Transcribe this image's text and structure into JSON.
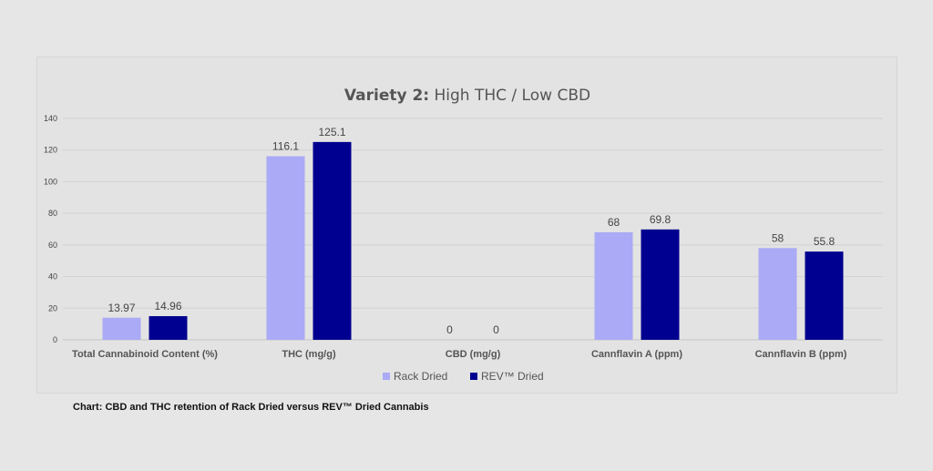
{
  "caption": "Chart: CBD and THC retention of Rack Dried versus REV™ Dried Cannabis",
  "chart_data": {
    "type": "bar",
    "title_bold": "Variety 2:",
    "title_rest": " High THC / Low CBD",
    "categories": [
      "Total Cannabinoid Content (%)",
      "THC (mg/g)",
      "CBD (mg/g)",
      "Cannflavin A (ppm)",
      "Cannflavin B (ppm)"
    ],
    "series": [
      {
        "name": "Rack Dried",
        "color": "#aaaaf6",
        "values": [
          13.97,
          116.1,
          0,
          68,
          58
        ],
        "labels": [
          "13.97",
          "116.1",
          "0",
          "68",
          "58"
        ]
      },
      {
        "name": "REV™ Dried",
        "color": "#000090",
        "values": [
          14.96,
          125.1,
          0,
          69.8,
          55.8
        ],
        "labels": [
          "14.96",
          "125.1",
          "0",
          "69.8",
          "55.8"
        ]
      }
    ],
    "ylim": [
      0,
      140
    ],
    "yticks": [
      0,
      20,
      40,
      60,
      80,
      100,
      120,
      140
    ],
    "ytick_labels": [
      "0",
      "20",
      "40",
      "60",
      "80",
      "100",
      "120",
      "140"
    ],
    "grid": true,
    "legend_position": "bottom",
    "text_color": "#444444",
    "grid_color": "#d2d2d2"
  }
}
